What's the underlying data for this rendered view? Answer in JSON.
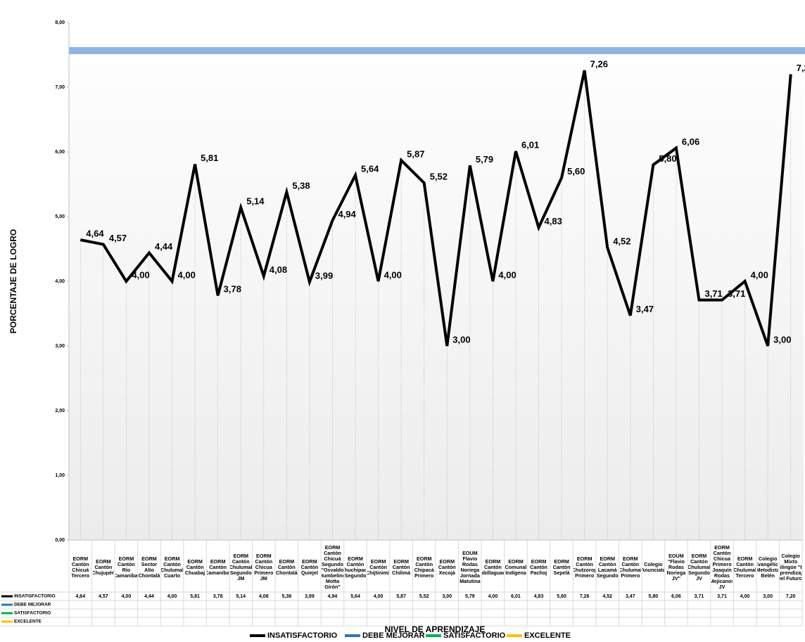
{
  "chart_data": {
    "type": "line",
    "y_label": "PORCENTAJE DE LOGRO",
    "x_label": "NIVEL DE APRENDIZAJE",
    "categories": [
      "EORM Cantón Chicuá Tercero",
      "EORM Cantón Chujupén",
      "EORM Cantón Río Camanibal",
      "EORM Sector Alto Chontalá",
      "EORM Cantón Chulumal Cuarto",
      "EORM Cantón Chuabaj",
      "EORM Cantón Camanibal",
      "EORM Cantón Chulumal Segundo JM",
      "EORM Cantón Chicua Primero JM",
      "EORM Cantón Chontalá",
      "EORM Cantón Quiejel",
      "EORM Cantón Chicuá Segundo \"Osvaldo Humbelino Motta Girón\"",
      "EORM Cantón Chuchipacá Segundo",
      "EORM Cantón Chijtinimit",
      "EORM Cantón Chilimá",
      "EORM Cantón Chipacá Primero",
      "EORM Cantón Xecojá",
      "EOUM Flavio Rodas Noriega Jornada Matutina",
      "EORM Cantón Xabillaguach",
      "EORM Comunal Indígena",
      "EORM Cantón Pachoj",
      "EORM Cantón Sepelá",
      "EORM Cantón Chutzorop Primero",
      "EORM Cantón Lacamá Segundo",
      "EORM Cantón Chulumal Primero",
      "Colegio \"Anunciata\"",
      "EOUM \"Flavio Rodas Noriega JV\"",
      "EORM Cantón Chulumal Segundo JV",
      "EORM Cantón Chicua Primero Joaquín Rodas Mejicanos JV",
      "EORM Cantón Chulumal Tercero",
      "Colegio Evangélico Metodista Belén",
      "Colegio Mixto Bilingüe \"El Aprendizaje Del Futuro\""
    ],
    "series": [
      {
        "name": "INSATISFACTORIO",
        "color": "#000000",
        "values": [
          4.64,
          4.57,
          4.0,
          4.44,
          4.0,
          5.81,
          3.78,
          5.14,
          4.08,
          5.38,
          3.99,
          4.94,
          5.64,
          4.0,
          5.87,
          5.52,
          3.0,
          5.79,
          4.0,
          6.01,
          4.83,
          5.6,
          7.26,
          4.52,
          3.47,
          5.8,
          6.06,
          3.71,
          3.71,
          4.0,
          3.0,
          7.2
        ],
        "value_labels": [
          "4,64",
          "4,57",
          "4,00",
          "4,44",
          "4,00",
          "5,81",
          "3,78",
          "5,14",
          "4,08",
          "5,38",
          "3,99",
          "4,94",
          "5,64",
          "4,00",
          "5,87",
          "5,52",
          "3,00",
          "5,79",
          "4,00",
          "6,01",
          "4,83",
          "5,60",
          "7,26",
          "4,52",
          "3,47",
          "5,80",
          "6,06",
          "3,71",
          "3,71",
          "4,00",
          "3,00",
          "7,20"
        ]
      },
      {
        "name": "DEBE MEJORAR",
        "color": "#2e75b6",
        "values": [
          null,
          null,
          null,
          null,
          null,
          null,
          null,
          null,
          null,
          null,
          null,
          null,
          null,
          null,
          null,
          null,
          null,
          null,
          null,
          null,
          null,
          null,
          null,
          null,
          null,
          null,
          null,
          null,
          null,
          null,
          null,
          null
        ]
      },
      {
        "name": "SATISFACTORIO",
        "color": "#00b050",
        "values": [
          null,
          null,
          null,
          null,
          null,
          null,
          null,
          null,
          null,
          null,
          null,
          null,
          null,
          null,
          null,
          null,
          null,
          null,
          null,
          null,
          null,
          null,
          null,
          null,
          null,
          null,
          null,
          null,
          null,
          null,
          null,
          null
        ]
      },
      {
        "name": "EXCELENTE",
        "color": "#ffc000",
        "values": [
          null,
          null,
          null,
          null,
          null,
          null,
          null,
          null,
          null,
          null,
          null,
          null,
          null,
          null,
          null,
          null,
          null,
          null,
          null,
          null,
          null,
          null,
          null,
          null,
          null,
          null,
          null,
          null,
          null,
          null,
          null,
          null
        ]
      }
    ],
    "ylim": [
      0,
      8
    ],
    "yticks": [
      {
        "value": 0,
        "label": "0,00"
      },
      {
        "value": 1,
        "label": "1,00"
      },
      {
        "value": 2,
        "label": "2,00"
      },
      {
        "value": 3,
        "label": "3,00"
      },
      {
        "value": 4,
        "label": "4,00"
      },
      {
        "value": 5,
        "label": "5,00"
      },
      {
        "value": 6,
        "label": "6,00"
      },
      {
        "value": 7,
        "label": "7,00"
      },
      {
        "value": 8,
        "label": "8,00"
      }
    ],
    "legend": "bottom"
  }
}
